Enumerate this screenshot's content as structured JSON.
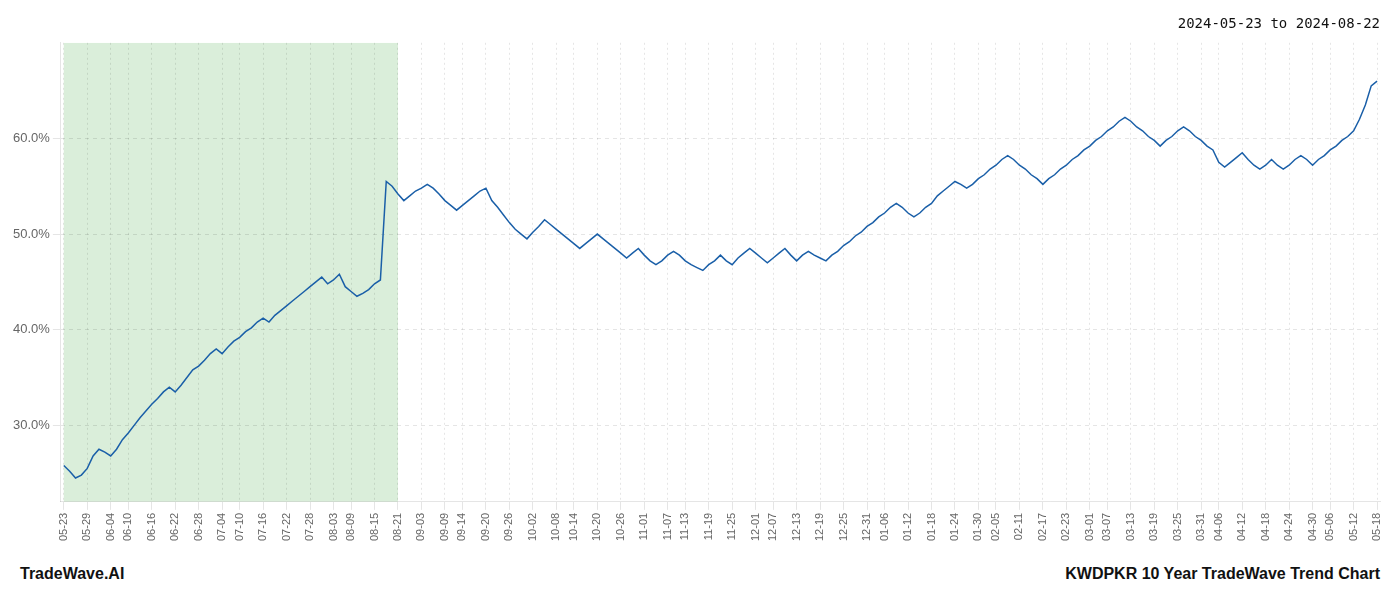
{
  "chart_data": {
    "type": "line",
    "title": "2024-05-23 to 2024-08-22",
    "annotations": [
      "TradeWave.AI",
      "KWDPKR 10 Year TradeWave Trend Chart"
    ],
    "categories": [
      "05-23",
      null,
      null,
      null,
      "05-29",
      null,
      null,
      null,
      "06-04",
      null,
      null,
      "06-10",
      null,
      null,
      null,
      "06-16",
      null,
      null,
      null,
      "06-22",
      null,
      null,
      null,
      "06-28",
      null,
      null,
      null,
      "07-04",
      null,
      null,
      "07-10",
      null,
      null,
      null,
      "07-16",
      null,
      null,
      null,
      "07-22",
      null,
      null,
      null,
      "07-28",
      null,
      null,
      null,
      "08-03",
      null,
      null,
      "08-09",
      null,
      null,
      null,
      "08-15",
      null,
      null,
      null,
      "08-21",
      null,
      null,
      null,
      "09-03",
      null,
      null,
      null,
      "09-09",
      null,
      null,
      "09-14",
      null,
      null,
      null,
      "09-20",
      null,
      null,
      null,
      "09-26",
      null,
      null,
      null,
      "10-02",
      null,
      null,
      null,
      "10-08",
      null,
      null,
      "10-14",
      null,
      null,
      null,
      "10-20",
      null,
      null,
      null,
      "10-26",
      null,
      null,
      null,
      "11-01",
      null,
      null,
      null,
      "11-07",
      null,
      null,
      "11-13",
      null,
      null,
      null,
      "11-19",
      null,
      null,
      null,
      "11-25",
      null,
      null,
      null,
      "12-01",
      null,
      null,
      "12-07",
      null,
      null,
      null,
      "12-13",
      null,
      null,
      null,
      "12-19",
      null,
      null,
      null,
      "12-25",
      null,
      null,
      null,
      "12-31",
      null,
      null,
      "01-06",
      null,
      null,
      null,
      "01-12",
      null,
      null,
      null,
      "01-18",
      null,
      null,
      null,
      "01-24",
      null,
      null,
      null,
      "01-30",
      null,
      null,
      "02-05",
      null,
      null,
      null,
      "02-11",
      null,
      null,
      null,
      "02-17",
      null,
      null,
      null,
      "02-23",
      null,
      null,
      null,
      "03-01",
      null,
      null,
      "03-07",
      null,
      null,
      null,
      "03-13",
      null,
      null,
      null,
      "03-19",
      null,
      null,
      null,
      "03-25",
      null,
      null,
      null,
      "03-31",
      null,
      null,
      "04-06",
      null,
      null,
      null,
      "04-12",
      null,
      null,
      null,
      "04-18",
      null,
      null,
      null,
      "04-24",
      null,
      null,
      null,
      "04-30",
      null,
      null,
      "05-06",
      null,
      null,
      null,
      "05-12",
      null,
      null,
      null,
      "05-18"
    ],
    "values": [
      25.8,
      25.2,
      24.5,
      24.8,
      25.5,
      26.8,
      27.5,
      27.2,
      26.8,
      27.5,
      28.5,
      29.2,
      30.0,
      30.8,
      31.5,
      32.2,
      32.8,
      33.5,
      34.0,
      33.5,
      34.2,
      35.0,
      35.8,
      36.2,
      36.8,
      37.5,
      38.0,
      37.5,
      38.2,
      38.8,
      39.2,
      39.8,
      40.2,
      40.8,
      41.2,
      40.8,
      41.5,
      42.0,
      42.5,
      43.0,
      43.5,
      44.0,
      44.5,
      45.0,
      45.5,
      44.8,
      45.2,
      45.8,
      44.5,
      44.0,
      43.5,
      43.8,
      44.2,
      44.8,
      45.2,
      55.5,
      55.0,
      54.2,
      53.5,
      54.0,
      54.5,
      54.8,
      55.2,
      54.8,
      54.2,
      53.5,
      53.0,
      52.5,
      53.0,
      53.5,
      54.0,
      54.5,
      54.8,
      53.5,
      52.8,
      52.0,
      51.2,
      50.5,
      50.0,
      49.5,
      50.2,
      50.8,
      51.5,
      51.0,
      50.5,
      50.0,
      49.5,
      49.0,
      48.5,
      49.0,
      49.5,
      50.0,
      49.5,
      49.0,
      48.5,
      48.0,
      47.5,
      48.0,
      48.5,
      47.8,
      47.2,
      46.8,
      47.2,
      47.8,
      48.2,
      47.8,
      47.2,
      46.8,
      46.5,
      46.2,
      46.8,
      47.2,
      47.8,
      47.2,
      46.8,
      47.5,
      48.0,
      48.5,
      48.0,
      47.5,
      47.0,
      47.5,
      48.0,
      48.5,
      47.8,
      47.2,
      47.8,
      48.2,
      47.8,
      47.5,
      47.2,
      47.8,
      48.2,
      48.8,
      49.2,
      49.8,
      50.2,
      50.8,
      51.2,
      51.8,
      52.2,
      52.8,
      53.2,
      52.8,
      52.2,
      51.8,
      52.2,
      52.8,
      53.2,
      54.0,
      54.5,
      55.0,
      55.5,
      55.2,
      54.8,
      55.2,
      55.8,
      56.2,
      56.8,
      57.2,
      57.8,
      58.2,
      57.8,
      57.2,
      56.8,
      56.2,
      55.8,
      55.2,
      55.8,
      56.2,
      56.8,
      57.2,
      57.8,
      58.2,
      58.8,
      59.2,
      59.8,
      60.2,
      60.8,
      61.2,
      61.8,
      62.2,
      61.8,
      61.2,
      60.8,
      60.2,
      59.8,
      59.2,
      59.8,
      60.2,
      60.8,
      61.2,
      60.8,
      60.2,
      59.8,
      59.2,
      58.8,
      57.5,
      57.0,
      57.5,
      58.0,
      58.5,
      57.8,
      57.2,
      56.8,
      57.2,
      57.8,
      57.2,
      56.8,
      57.2,
      57.8,
      58.2,
      57.8,
      57.2,
      57.8,
      58.2,
      58.8,
      59.2,
      59.8,
      60.2,
      60.8,
      62.0,
      63.5,
      65.5,
      66.0
    ],
    "color": "#1a5fa8",
    "ylim": [
      22.0,
      70.0
    ],
    "yticks": [
      {
        "value": 30.0,
        "label": "30.0%"
      },
      {
        "value": 40.0,
        "label": "40.0%"
      },
      {
        "value": 50.0,
        "label": "50.0%"
      },
      {
        "value": 60.0,
        "label": "60.0%"
      }
    ],
    "grid": true,
    "shade": {
      "from": "05-23",
      "to": "08-21",
      "color": "#daeeda"
    }
  }
}
